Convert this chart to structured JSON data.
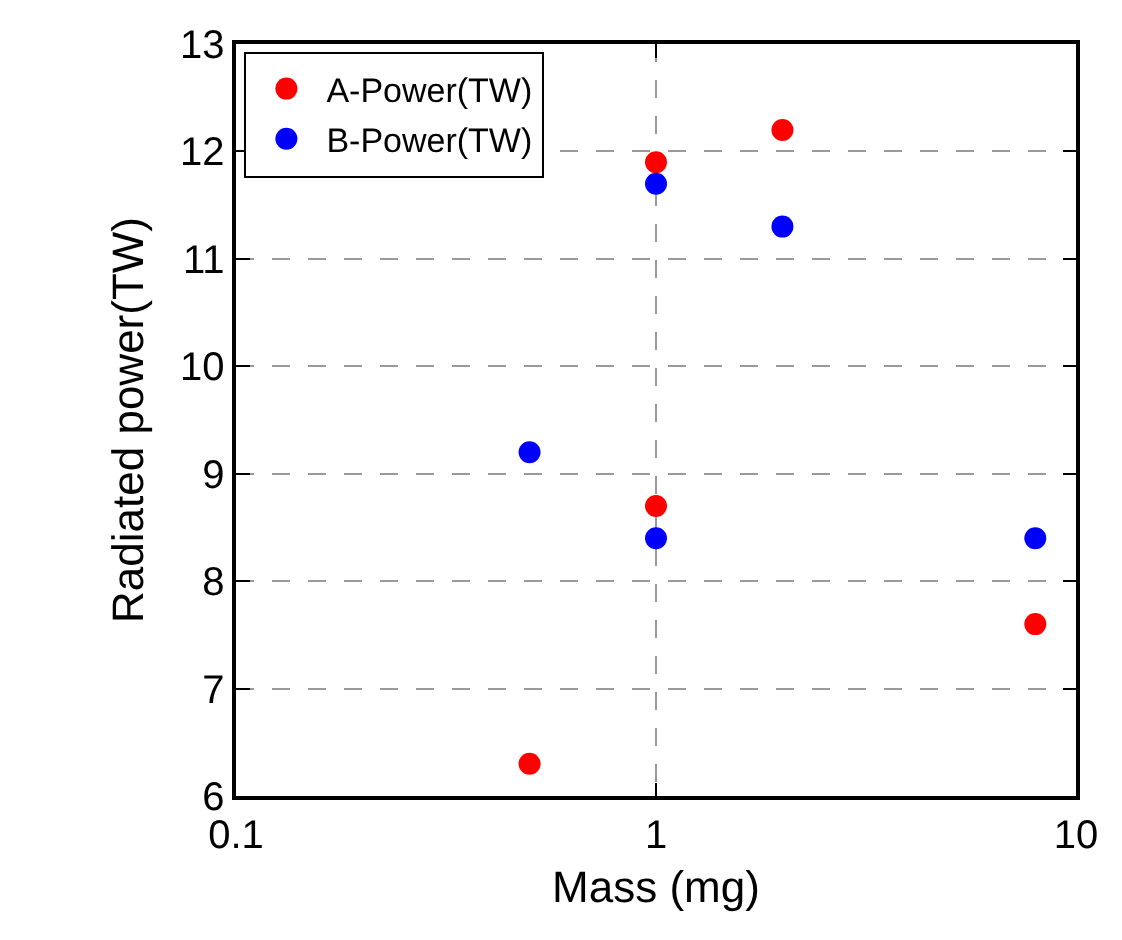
{
  "chart_data": {
    "type": "scatter",
    "xlabel": "Mass (mg)",
    "ylabel": "Radiated power(TW)",
    "log": "x",
    "xlim": [
      0.1,
      10
    ],
    "xticks": [
      0.1,
      1,
      10
    ],
    "ylim": [
      6,
      13
    ],
    "yticks": [
      6,
      7,
      8,
      9,
      10,
      11,
      12,
      13
    ],
    "grid": true,
    "legend": "top left",
    "marker": "circle",
    "series": [
      {
        "name": "A-Power(TW)",
        "color": "#ff0000",
        "x": [
          0.5,
          1,
          1,
          2,
          8
        ],
        "values": [
          6.3,
          8.7,
          11.9,
          12.2,
          7.6
        ]
      },
      {
        "name": "B-Power(TW)",
        "color": "#0000ff",
        "x": [
          0.5,
          1,
          1,
          2,
          8
        ],
        "values": [
          9.2,
          8.4,
          11.7,
          11.3,
          8.4
        ]
      }
    ]
  }
}
